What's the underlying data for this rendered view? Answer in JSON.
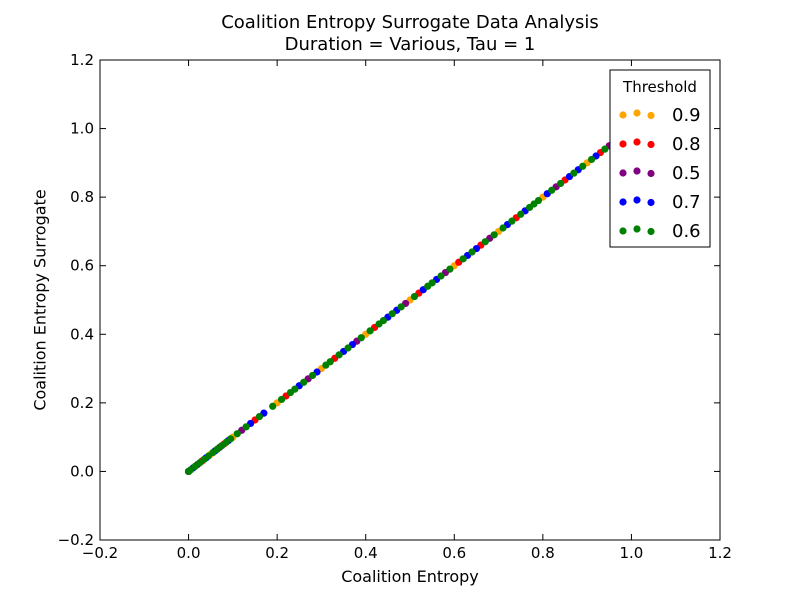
{
  "chart_data": {
    "type": "scatter",
    "title": "Coalition Entropy Surrogate Data Analysis",
    "subtitle": "Duration = Various, Tau = 1",
    "xlabel": "Coalition Entropy",
    "ylabel": "Coalition Entropy Surrogate",
    "xlim": [
      -0.2,
      1.2
    ],
    "ylim": [
      -0.2,
      1.2
    ],
    "xticks": [
      -0.2,
      0.0,
      0.2,
      0.4,
      0.6,
      0.8,
      1.0,
      1.2
    ],
    "yticks": [
      -0.2,
      0.0,
      0.2,
      0.4,
      0.6,
      0.8,
      1.0,
      1.2
    ],
    "xtick_labels": [
      "−0.2",
      "0.0",
      "0.2",
      "0.4",
      "0.6",
      "0.8",
      "1.0",
      "1.2"
    ],
    "ytick_labels": [
      "−0.2",
      "0.0",
      "0.2",
      "0.4",
      "0.6",
      "0.8",
      "1.0",
      "1.2"
    ],
    "grid": false,
    "legend": {
      "title": "Threshold",
      "placement": "top-right"
    },
    "series": [
      {
        "name": "0.9",
        "color": "#ffa500",
        "x": [
          0.0,
          0.05,
          0.1,
          0.2,
          0.3,
          0.4,
          0.5,
          0.6,
          0.7,
          0.8,
          0.9,
          0.97
        ],
        "y": [
          0.0,
          0.05,
          0.1,
          0.2,
          0.3,
          0.4,
          0.5,
          0.6,
          0.7,
          0.8,
          0.9,
          0.97
        ]
      },
      {
        "name": "0.8",
        "color": "#ff0000",
        "x": [
          0.0,
          0.03,
          0.08,
          0.15,
          0.22,
          0.33,
          0.42,
          0.52,
          0.61,
          0.66,
          0.74,
          0.85,
          0.93
        ],
        "y": [
          0.0,
          0.03,
          0.08,
          0.15,
          0.22,
          0.33,
          0.42,
          0.52,
          0.61,
          0.66,
          0.74,
          0.85,
          0.93
        ]
      },
      {
        "name": "0.5",
        "color": "#800080",
        "x": [
          0.0,
          0.02,
          0.07,
          0.12,
          0.27,
          0.38,
          0.49,
          0.58,
          0.68,
          0.83,
          0.95
        ],
        "y": [
          0.0,
          0.02,
          0.07,
          0.12,
          0.27,
          0.38,
          0.49,
          0.58,
          0.68,
          0.83,
          0.95
        ]
      },
      {
        "name": "0.7",
        "color": "#0000ff",
        "x": [
          0.0,
          0.01,
          0.04,
          0.06,
          0.09,
          0.14,
          0.17,
          0.25,
          0.29,
          0.35,
          0.37,
          0.45,
          0.47,
          0.53,
          0.56,
          0.63,
          0.65,
          0.72,
          0.76,
          0.81,
          0.86,
          0.88,
          0.92,
          0.96
        ],
        "y": [
          0.0,
          0.01,
          0.04,
          0.06,
          0.09,
          0.14,
          0.17,
          0.25,
          0.29,
          0.35,
          0.37,
          0.45,
          0.47,
          0.53,
          0.56,
          0.63,
          0.65,
          0.72,
          0.76,
          0.81,
          0.86,
          0.88,
          0.92,
          0.96
        ]
      },
      {
        "name": "0.6",
        "color": "#008000",
        "x": [
          0.0,
          0.005,
          0.015,
          0.025,
          0.035,
          0.045,
          0.055,
          0.065,
          0.075,
          0.085,
          0.095,
          0.11,
          0.13,
          0.16,
          0.19,
          0.21,
          0.23,
          0.24,
          0.26,
          0.28,
          0.31,
          0.32,
          0.34,
          0.36,
          0.39,
          0.41,
          0.43,
          0.44,
          0.46,
          0.48,
          0.51,
          0.54,
          0.55,
          0.57,
          0.59,
          0.62,
          0.64,
          0.67,
          0.69,
          0.71,
          0.73,
          0.75,
          0.77,
          0.78,
          0.79,
          0.82,
          0.84,
          0.87,
          0.89,
          0.91,
          0.94,
          0.96,
          0.98
        ],
        "y": [
          0.0,
          0.005,
          0.015,
          0.025,
          0.035,
          0.045,
          0.055,
          0.065,
          0.075,
          0.085,
          0.095,
          0.11,
          0.13,
          0.16,
          0.19,
          0.21,
          0.23,
          0.24,
          0.26,
          0.28,
          0.31,
          0.32,
          0.34,
          0.36,
          0.39,
          0.41,
          0.43,
          0.44,
          0.46,
          0.48,
          0.51,
          0.54,
          0.55,
          0.57,
          0.59,
          0.62,
          0.64,
          0.67,
          0.69,
          0.71,
          0.73,
          0.75,
          0.77,
          0.78,
          0.79,
          0.82,
          0.84,
          0.87,
          0.89,
          0.91,
          0.94,
          0.96,
          0.98
        ]
      }
    ]
  }
}
